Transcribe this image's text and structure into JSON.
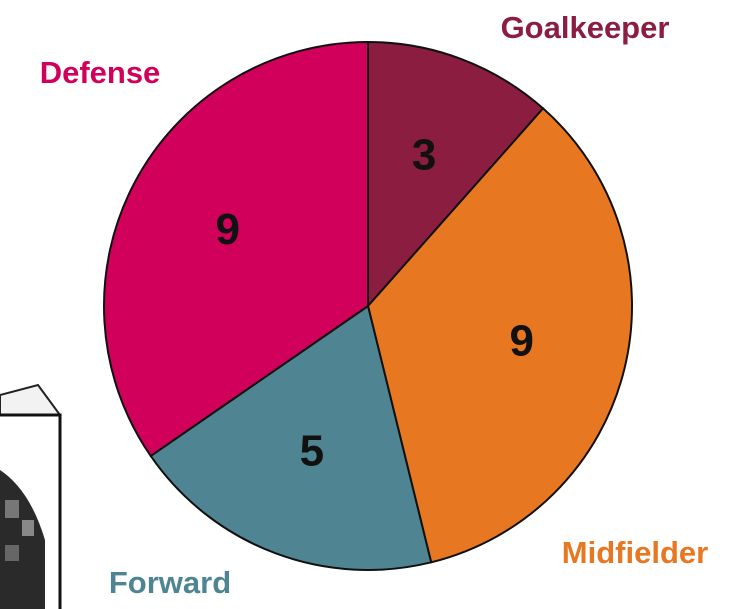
{
  "chart_data": {
    "type": "pie",
    "categories": [
      "Goalkeeper",
      "Midfielder",
      "Forward",
      "Defense"
    ],
    "values": [
      3,
      9,
      5,
      9
    ],
    "colors": [
      "#8b1e40",
      "#e87722",
      "#4f8592",
      "#d1005a"
    ]
  }
}
